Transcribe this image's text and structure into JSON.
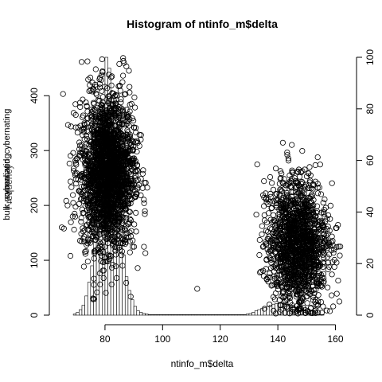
{
  "chart_data": {
    "type": "histogram",
    "title": "Histogram of ntinfo_m$delta",
    "xlabel": "ntinfo_m$delta",
    "ylabel_left": "Frequency",
    "ylabel_left_overlaps": [
      "bulk_cybernating",
      "normalized_cybernating"
    ],
    "xlim": [
      64,
      164
    ],
    "ylim_left": [
      0,
      470
    ],
    "ylim_right": [
      0,
      100
    ],
    "x_ticks": [
      80,
      100,
      120,
      140,
      160
    ],
    "y_ticks_left": [
      0,
      100,
      200,
      300,
      400
    ],
    "y_ticks_right": [
      0,
      20,
      40,
      60,
      80,
      100
    ],
    "histogram": {
      "bin_start": 65,
      "bin_width": 1,
      "counts": [
        0,
        0,
        0,
        0,
        2,
        5,
        10,
        18,
        35,
        60,
        90,
        150,
        220,
        300,
        380,
        470,
        450,
        380,
        300,
        230,
        160,
        110,
        70,
        45,
        28,
        16,
        8,
        5,
        3,
        2,
        1,
        1,
        1,
        1,
        1,
        1,
        1,
        1,
        1,
        1,
        1,
        1,
        1,
        1,
        1,
        1,
        1,
        1,
        1,
        1,
        1,
        1,
        1,
        1,
        1,
        1,
        1,
        1,
        1,
        1,
        1,
        1,
        1,
        1,
        2,
        3,
        5,
        8,
        10,
        12,
        14,
        16,
        18,
        20,
        21,
        22,
        22,
        21,
        20,
        18,
        16,
        14,
        12,
        10,
        8,
        6,
        4,
        3,
        2,
        1,
        1,
        0,
        0,
        0,
        0,
        0,
        0,
        0,
        0
      ]
    },
    "scatter_overlay": {
      "axis": "left",
      "clusters": [
        {
          "x_center": 81,
          "x_sd": 4.6,
          "y_center": 260,
          "y_sd": 68,
          "n": 2400,
          "y_min": 25,
          "y_max": 470
        },
        {
          "x_center": 147,
          "x_sd": 5.2,
          "y_center": 130,
          "y_sd": 58,
          "n": 1600,
          "y_min": 3,
          "y_max": 320
        }
      ],
      "outliers": [
        [
          112,
          48
        ],
        [
          65,
          160
        ],
        [
          67,
          200
        ],
        [
          68,
          108
        ]
      ]
    }
  }
}
